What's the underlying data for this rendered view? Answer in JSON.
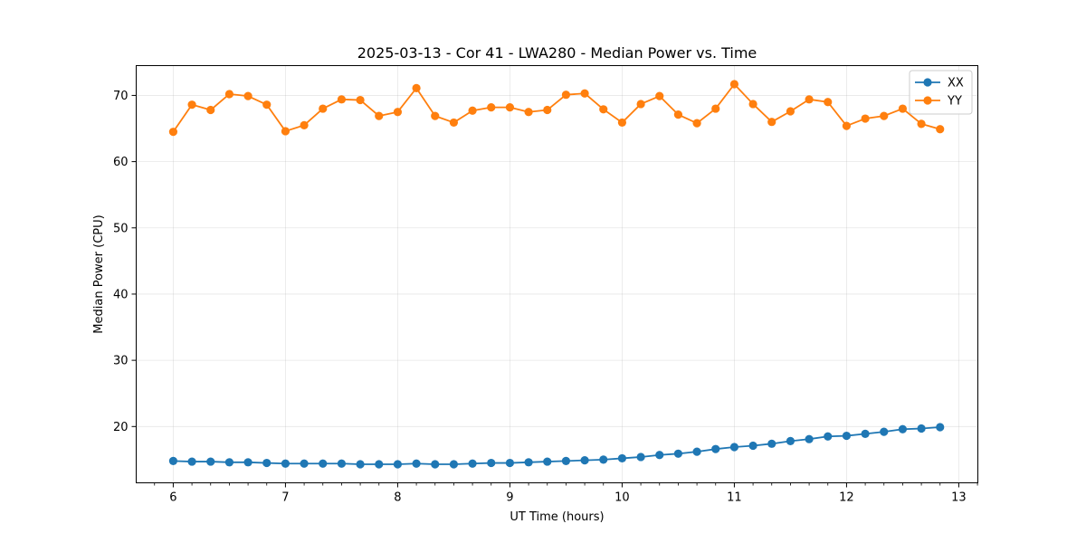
{
  "chart_data": {
    "type": "line",
    "title": "2025-03-13 - Cor 41 - LWA280 - Median Power vs. Time",
    "xlabel": "UT Time (hours)",
    "ylabel": "Median Power (CPU)",
    "xlim": [
      5.67,
      13.17
    ],
    "ylim": [
      11.5,
      74.5
    ],
    "xticks": [
      6,
      7,
      8,
      9,
      10,
      11,
      12,
      13
    ],
    "yticks": [
      20,
      30,
      40,
      50,
      60,
      70
    ],
    "grid": true,
    "legend_position": "top-right",
    "x": [
      6.0,
      6.1667,
      6.3333,
      6.5,
      6.6667,
      6.8333,
      7.0,
      7.1667,
      7.3333,
      7.5,
      7.6667,
      7.8333,
      8.0,
      8.1667,
      8.3333,
      8.5,
      8.6667,
      8.8333,
      9.0,
      9.1667,
      9.3333,
      9.5,
      9.6667,
      9.8333,
      10.0,
      10.1667,
      10.3333,
      10.5,
      10.6667,
      10.8333,
      11.0,
      11.1667,
      11.3333,
      11.5,
      11.6667,
      11.8333,
      12.0,
      12.1667,
      12.3333,
      12.5,
      12.6667,
      12.8333
    ],
    "series": [
      {
        "name": "XX",
        "color": "#1f77b4",
        "values": [
          14.8,
          14.7,
          14.7,
          14.6,
          14.6,
          14.5,
          14.4,
          14.4,
          14.4,
          14.4,
          14.3,
          14.3,
          14.3,
          14.4,
          14.3,
          14.3,
          14.4,
          14.5,
          14.5,
          14.6,
          14.7,
          14.8,
          14.9,
          15.0,
          15.2,
          15.4,
          15.7,
          15.9,
          16.2,
          16.6,
          16.9,
          17.1,
          17.4,
          17.8,
          18.1,
          18.5,
          18.6,
          18.9,
          19.2,
          19.6,
          19.7,
          19.9
        ]
      },
      {
        "name": "YY",
        "color": "#ff7f0e",
        "values": [
          64.5,
          68.6,
          67.8,
          70.2,
          69.9,
          68.6,
          64.6,
          65.5,
          68.0,
          69.4,
          69.3,
          66.9,
          67.5,
          71.1,
          66.9,
          65.9,
          67.7,
          68.2,
          68.2,
          67.5,
          67.8,
          70.1,
          70.3,
          67.9,
          65.9,
          68.7,
          69.9,
          67.1,
          65.8,
          68.0,
          71.7,
          68.7,
          66.0,
          67.6,
          69.4,
          69.0,
          65.4,
          66.5,
          66.9,
          68.0,
          65.7,
          64.9
        ]
      }
    ]
  }
}
